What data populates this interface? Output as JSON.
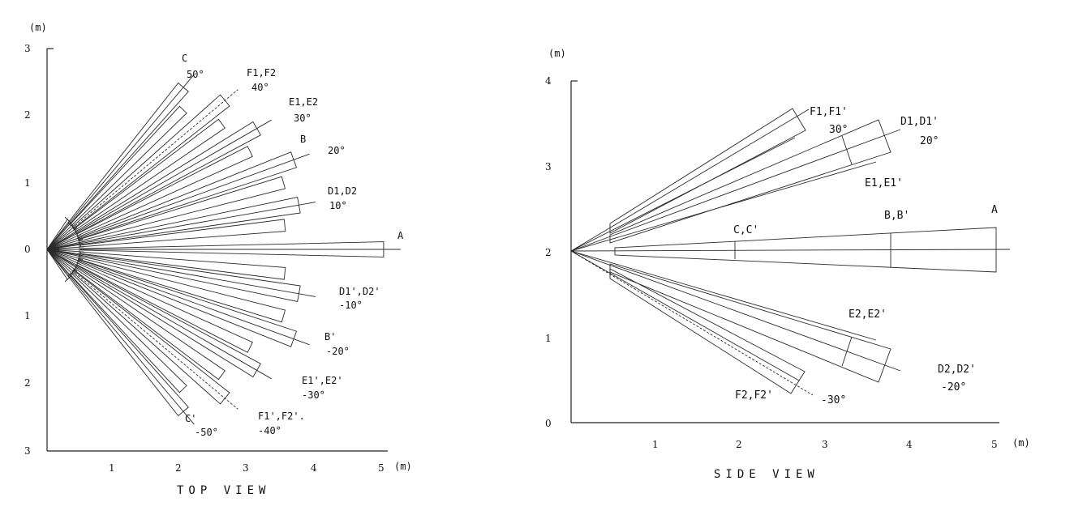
{
  "top_view": {
    "caption": "TOP VIEW",
    "unit_label": "(m)",
    "x_unit_label": "(m)",
    "y_ticks": [
      "3",
      "2",
      "1",
      "0",
      "1",
      "2",
      "3"
    ],
    "x_ticks": [
      "1",
      "2",
      "3",
      "4",
      "5"
    ],
    "beams": [
      {
        "id": "C",
        "label": "C",
        "angle_label": "50°",
        "angle_deg": 50
      },
      {
        "id": "F1F2",
        "label": "F1,F2",
        "angle_label": "40°",
        "angle_deg": 40
      },
      {
        "id": "E1E2",
        "label": "E1,E2",
        "angle_label": "30°",
        "angle_deg": 30
      },
      {
        "id": "B",
        "label": "B",
        "angle_label": "20°",
        "angle_deg": 20
      },
      {
        "id": "D1D2",
        "label": "D1,D2",
        "angle_label": "10°",
        "angle_deg": 10
      },
      {
        "id": "A",
        "label": "A",
        "angle_label": "",
        "angle_deg": 0
      },
      {
        "id": "D1pD2p",
        "label": "D1',D2'",
        "angle_label": "-10°",
        "angle_deg": -10
      },
      {
        "id": "Bp",
        "label": "B'",
        "angle_label": "-20°",
        "angle_deg": -20
      },
      {
        "id": "E1pE2p",
        "label": "E1',E2'",
        "angle_label": "-30°",
        "angle_deg": -30
      },
      {
        "id": "F1pF2p",
        "label": "F1',F2'.",
        "angle_label": "-40°",
        "angle_deg": -40
      },
      {
        "id": "Cp",
        "label": "C'",
        "angle_label": "-50°",
        "angle_deg": -50
      }
    ]
  },
  "side_view": {
    "caption": "SIDE VIEW",
    "unit_label": "(m)",
    "x_unit_label": "(m)",
    "y_ticks": [
      "4",
      "3",
      "2",
      "1",
      "0"
    ],
    "x_ticks": [
      "1",
      "2",
      "3",
      "4",
      "5"
    ],
    "labels": {
      "F1F1p": "F1,F1'",
      "F1F1p_angle": "30°",
      "D1D1p": "D1,D1'",
      "D1D1p_angle": "20°",
      "E1E1p": "E1,E1'",
      "A": "A",
      "BBp": "B,B'",
      "CCp": "C,C'",
      "E2E2p": "E2,E2'",
      "D2D2p": "D2,D2'",
      "D2D2p_angle": "-20°",
      "F2F2p": "F2,F2'",
      "F2F2p_angle": "-30°"
    }
  }
}
